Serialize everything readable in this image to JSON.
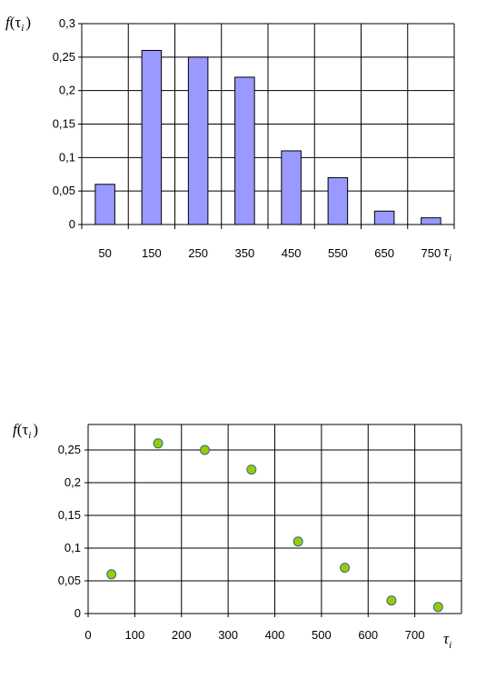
{
  "chart_data": [
    {
      "type": "bar",
      "categories": [
        "50",
        "150",
        "250",
        "350",
        "450",
        "550",
        "650",
        "750"
      ],
      "values": [
        0.06,
        0.26,
        0.25,
        0.22,
        0.11,
        0.07,
        0.02,
        0.01
      ],
      "ylim": [
        0,
        0.3
      ],
      "yticks": [
        "0",
        "0,05",
        "0,1",
        "0,15",
        "0,2",
        "0,25",
        "0,3"
      ],
      "ylabel": {
        "func": "f",
        "open": "(",
        "var": "τ",
        "sub": "i",
        "close": ")"
      },
      "xlabel": {
        "var": "τ",
        "sub": "i"
      },
      "grid": true,
      "colors": {
        "bar_fill": "#9999ff",
        "bar_stroke": "#000000"
      }
    },
    {
      "type": "scatter",
      "x": [
        50,
        150,
        250,
        350,
        450,
        550,
        650,
        750
      ],
      "y": [
        0.06,
        0.26,
        0.25,
        0.22,
        0.11,
        0.07,
        0.02,
        0.01
      ],
      "xlim": [
        0,
        800
      ],
      "ylim": [
        0,
        0.3
      ],
      "xticks": [
        "0",
        "100",
        "200",
        "300",
        "400",
        "500",
        "600",
        "700"
      ],
      "yticks": [
        "0",
        "0,05",
        "0,1",
        "0,15",
        "0,2",
        "0,25"
      ],
      "ylabel": {
        "func": "f",
        "open": "(",
        "var": "τ",
        "sub": "i",
        "close": ")"
      },
      "xlabel": {
        "var": "τ",
        "sub": "i"
      },
      "grid": true,
      "colors": {
        "marker_fill": "#99cc00",
        "marker_stroke": "#336699"
      }
    }
  ]
}
